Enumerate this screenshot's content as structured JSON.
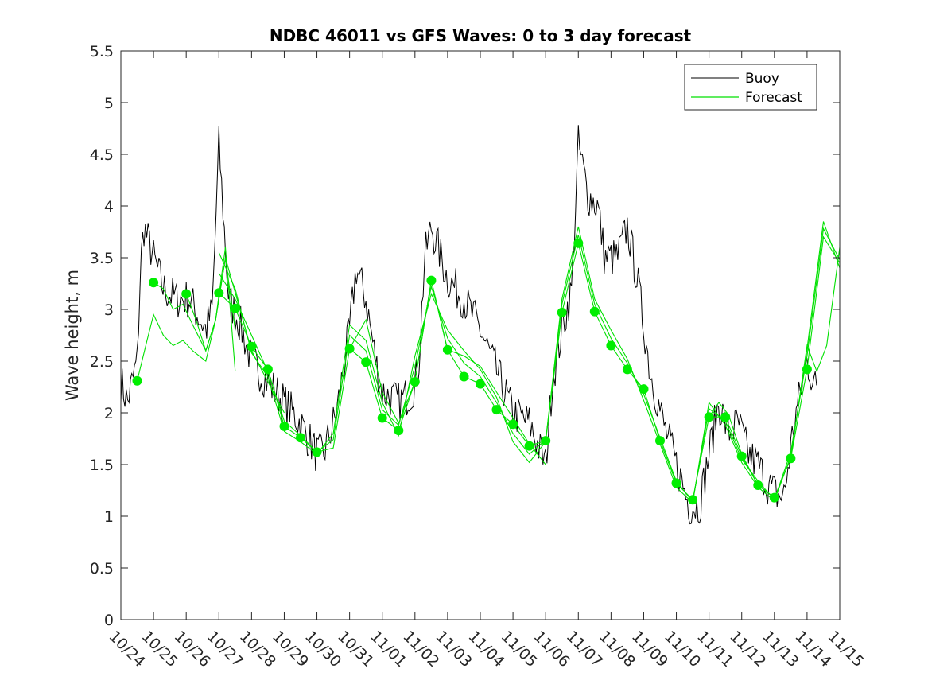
{
  "chart_data": {
    "type": "line",
    "title": "NDBC 46011 vs GFS Waves: 0 to 3 day forecast",
    "xlabel": "",
    "ylabel": "Wave height, m",
    "x_day_range": [
      0,
      22
    ],
    "ylim": [
      0,
      5.5
    ],
    "y_ticks": [
      0,
      0.5,
      1,
      1.5,
      2,
      2.5,
      3,
      3.5,
      4,
      4.5,
      5,
      5.5
    ],
    "y_tick_labels": [
      "0",
      "0.5",
      "1",
      "1.5",
      "2",
      "2.5",
      "3",
      "3.5",
      "4",
      "4.5",
      "5",
      "5.5"
    ],
    "x_ticks": [
      0,
      1,
      2,
      3,
      4,
      5,
      6,
      7,
      8,
      9,
      10,
      11,
      12,
      13,
      14,
      15,
      16,
      17,
      18,
      19,
      20,
      21,
      22
    ],
    "x_tick_labels": [
      "10/24",
      "10/25",
      "10/26",
      "10/27",
      "10/28",
      "10/29",
      "10/30",
      "10/31",
      "11/01",
      "11/02",
      "11/03",
      "11/04",
      "11/05",
      "11/06",
      "11/07",
      "11/08",
      "11/09",
      "11/10",
      "11/11",
      "11/12",
      "11/13",
      "11/14",
      "11/15"
    ],
    "legend": {
      "position": "top-right",
      "entries": [
        {
          "label": "Buoy",
          "color": "#000000"
        },
        {
          "label": "Forecast",
          "color": "#00e000"
        }
      ]
    },
    "colors": {
      "buoy": "#000000",
      "forecast": "#00e000",
      "markers": "#00ee00"
    },
    "buoy_series": {
      "name": "Buoy",
      "noise_amplitude": 0.2,
      "noise_per_day": 24,
      "x": [
        0,
        0.2,
        0.5,
        0.6,
        0.7,
        1,
        1.3,
        1.7,
        2.1,
        2.6,
        2.8,
        3.0,
        3.3,
        3.6,
        4,
        4.5,
        5,
        5.5,
        6,
        6.2,
        6.6,
        7,
        7.2,
        7.5,
        7.8,
        8,
        8.5,
        8.9,
        9.1,
        9.3,
        9.5,
        10,
        10.5,
        11,
        11.5,
        12,
        12.5,
        13,
        13.2,
        13.5,
        13.8,
        14,
        14.3,
        14.6,
        14.8,
        15.2,
        15.5,
        15.8,
        16.2,
        16.6,
        17,
        17.4,
        17.7,
        18,
        18.3,
        18.6,
        18.9,
        19.2,
        19.5,
        19.8,
        20.1,
        20.3,
        20.6,
        21,
        21.3
      ],
      "y": [
        2.3,
        2.1,
        2.5,
        3.4,
        3.8,
        3.5,
        3.2,
        3.1,
        3.1,
        2.8,
        3.0,
        4.6,
        3.1,
        2.9,
        2.5,
        2.3,
        2.1,
        1.9,
        1.6,
        1.6,
        2.0,
        2.8,
        3.4,
        3.1,
        2.5,
        2.2,
        2.1,
        2.2,
        2.4,
        3.5,
        3.8,
        3.3,
        3.1,
        2.8,
        2.4,
        2.0,
        1.9,
        1.5,
        2.3,
        2.8,
        3.2,
        4.6,
        4.1,
        4.0,
        3.5,
        3.5,
        3.8,
        3.3,
        2.4,
        1.9,
        1.5,
        1.1,
        1.1,
        1.6,
        2.1,
        1.8,
        1.9,
        1.6,
        1.5,
        1.3,
        1.2,
        1.2,
        1.9,
        2.5,
        2.2
      ]
    },
    "forecast_runs": [
      {
        "x": [
          0.5,
          0.8,
          1.0,
          1.3,
          1.6,
          1.9,
          2.2,
          2.6,
          2.9,
          3.2,
          3.5
        ],
        "y": [
          2.31,
          2.7,
          2.95,
          2.75,
          2.65,
          2.7,
          2.6,
          2.5,
          2.9,
          3.6,
          2.4
        ]
      },
      {
        "x": [
          1.0,
          1.3,
          1.6,
          1.9,
          2.2,
          2.6,
          2.9,
          3.2,
          3.5
        ],
        "y": [
          3.26,
          3.2,
          3.0,
          3.05,
          2.85,
          2.6,
          2.9,
          3.5,
          2.8
        ]
      },
      {
        "x": [
          2.0,
          2.3,
          2.6,
          2.9,
          3.2,
          3.6,
          4.0,
          4.5,
          5.0
        ],
        "y": [
          3.15,
          2.9,
          2.6,
          2.9,
          3.5,
          3.05,
          2.6,
          2.3,
          2.0
        ]
      },
      {
        "x": [
          3.0,
          3.5,
          4.0,
          4.5,
          5.0,
          5.5,
          6.0,
          6.5,
          7.0,
          7.5,
          8.0,
          8.5,
          9.0,
          9.5,
          10.0,
          10.5,
          11.0,
          11.5,
          12.0,
          12.5,
          13.0,
          13.5,
          14.0,
          14.5,
          15.0,
          15.5,
          16.0,
          16.5,
          17.0,
          17.5,
          18.0,
          18.5,
          19.0,
          19.5,
          20.0,
          20.5,
          21.0,
          21.5,
          22.0
        ],
        "y": [
          3.16,
          3.01,
          2.64,
          2.42,
          1.87,
          1.76,
          1.62,
          1.66,
          2.62,
          2.49,
          1.95,
          1.83,
          2.3,
          3.28,
          2.61,
          2.35,
          2.28,
          2.03,
          1.89,
          1.68,
          1.73,
          2.97,
          3.64,
          2.98,
          2.65,
          2.42,
          2.23,
          1.73,
          1.32,
          1.16,
          1.96,
          1.96,
          1.58,
          1.3,
          1.18,
          1.56,
          2.42,
          3.7,
          3.45
        ]
      },
      {
        "x": [
          3.0,
          3.5,
          4.0,
          4.5,
          5.0,
          5.5,
          6.0,
          6.5,
          7.0,
          7.5,
          8.0,
          8.5,
          9.0,
          9.5,
          10.0,
          10.5,
          11.0,
          11.5,
          12.0,
          12.5,
          13.0,
          13.5,
          14.0,
          14.5,
          15.0,
          15.5,
          16.0,
          16.5,
          17.0,
          17.5,
          18.0,
          18.5,
          19.0,
          19.5,
          20.0,
          20.5,
          21.0,
          21.5,
          22.0
        ],
        "y": [
          3.35,
          3.1,
          2.75,
          2.4,
          1.92,
          1.78,
          1.62,
          1.74,
          2.75,
          2.6,
          2.03,
          1.88,
          2.45,
          3.22,
          2.72,
          2.48,
          2.35,
          2.1,
          1.8,
          1.6,
          1.74,
          3.05,
          3.72,
          3.05,
          2.72,
          2.48,
          2.18,
          1.76,
          1.34,
          1.14,
          2.04,
          1.92,
          1.55,
          1.34,
          1.16,
          1.62,
          2.55,
          3.78,
          3.48
        ]
      },
      {
        "x": [
          3.0,
          3.5,
          4.0,
          4.5,
          5.0,
          5.5,
          6.0,
          6.5,
          7.0,
          7.5,
          8.0,
          8.5,
          9.0,
          9.5,
          10.0,
          10.5,
          11.0,
          11.5,
          12.0,
          12.5,
          13.0,
          13.5,
          14.0,
          14.5,
          15.0,
          15.5,
          16.0,
          16.5,
          17.0,
          17.5,
          18.0,
          18.5,
          19.0,
          19.5,
          20.0,
          20.5,
          21.0,
          21.5,
          22.0
        ],
        "y": [
          3.55,
          3.2,
          2.58,
          2.35,
          1.82,
          1.72,
          1.6,
          1.8,
          2.85,
          2.7,
          2.1,
          1.78,
          2.55,
          3.15,
          2.8,
          2.6,
          2.42,
          2.15,
          1.72,
          1.52,
          1.72,
          3.1,
          3.8,
          3.1,
          2.8,
          2.52,
          2.12,
          1.7,
          1.28,
          1.13,
          2.1,
          1.88,
          1.52,
          1.28,
          1.15,
          1.58,
          2.62,
          3.85,
          3.4
        ]
      },
      {
        "x": [
          7.0,
          7.5,
          8.0,
          8.5,
          9.0,
          9.5,
          10.0
        ],
        "y": [
          2.62,
          2.9,
          2.2,
          1.9,
          2.3,
          3.28,
          2.6
        ]
      },
      {
        "x": [
          10.0,
          10.5,
          11.0,
          11.5,
          12.0,
          12.5,
          13.0
        ],
        "y": [
          2.61,
          2.55,
          2.45,
          2.2,
          1.95,
          1.7,
          1.5
        ]
      },
      {
        "x": [
          18.0,
          18.3,
          18.6,
          19.0,
          19.5,
          20.0
        ],
        "y": [
          1.96,
          2.1,
          1.98,
          1.6,
          1.3,
          1.18
        ]
      },
      {
        "x": [
          20.5,
          21.0,
          21.3,
          21.6,
          22.0
        ],
        "y": [
          1.56,
          2.65,
          2.4,
          2.65,
          3.6
        ]
      }
    ],
    "markers": {
      "x": [
        0.5,
        1.0,
        2.0,
        3.0,
        3.5,
        4.0,
        4.5,
        5.0,
        5.5,
        6.0,
        7.0,
        7.5,
        8.0,
        8.5,
        9.0,
        9.5,
        10.0,
        10.5,
        11.0,
        11.5,
        12.0,
        12.5,
        13.0,
        13.5,
        14.0,
        14.5,
        15.0,
        15.5,
        16.0,
        16.5,
        17.0,
        17.5,
        18.0,
        18.5,
        19.0,
        19.5,
        20.0,
        20.5,
        21.0
      ],
      "y": [
        2.31,
        3.26,
        3.15,
        3.16,
        3.01,
        2.64,
        2.42,
        1.87,
        1.76,
        1.62,
        2.62,
        2.49,
        1.95,
        1.83,
        2.3,
        3.28,
        2.61,
        2.35,
        2.28,
        2.03,
        1.89,
        1.68,
        1.73,
        2.97,
        3.64,
        2.98,
        2.65,
        2.42,
        2.23,
        1.73,
        1.32,
        1.16,
        1.96,
        1.96,
        1.58,
        1.3,
        1.18,
        1.56,
        2.42
      ]
    }
  }
}
